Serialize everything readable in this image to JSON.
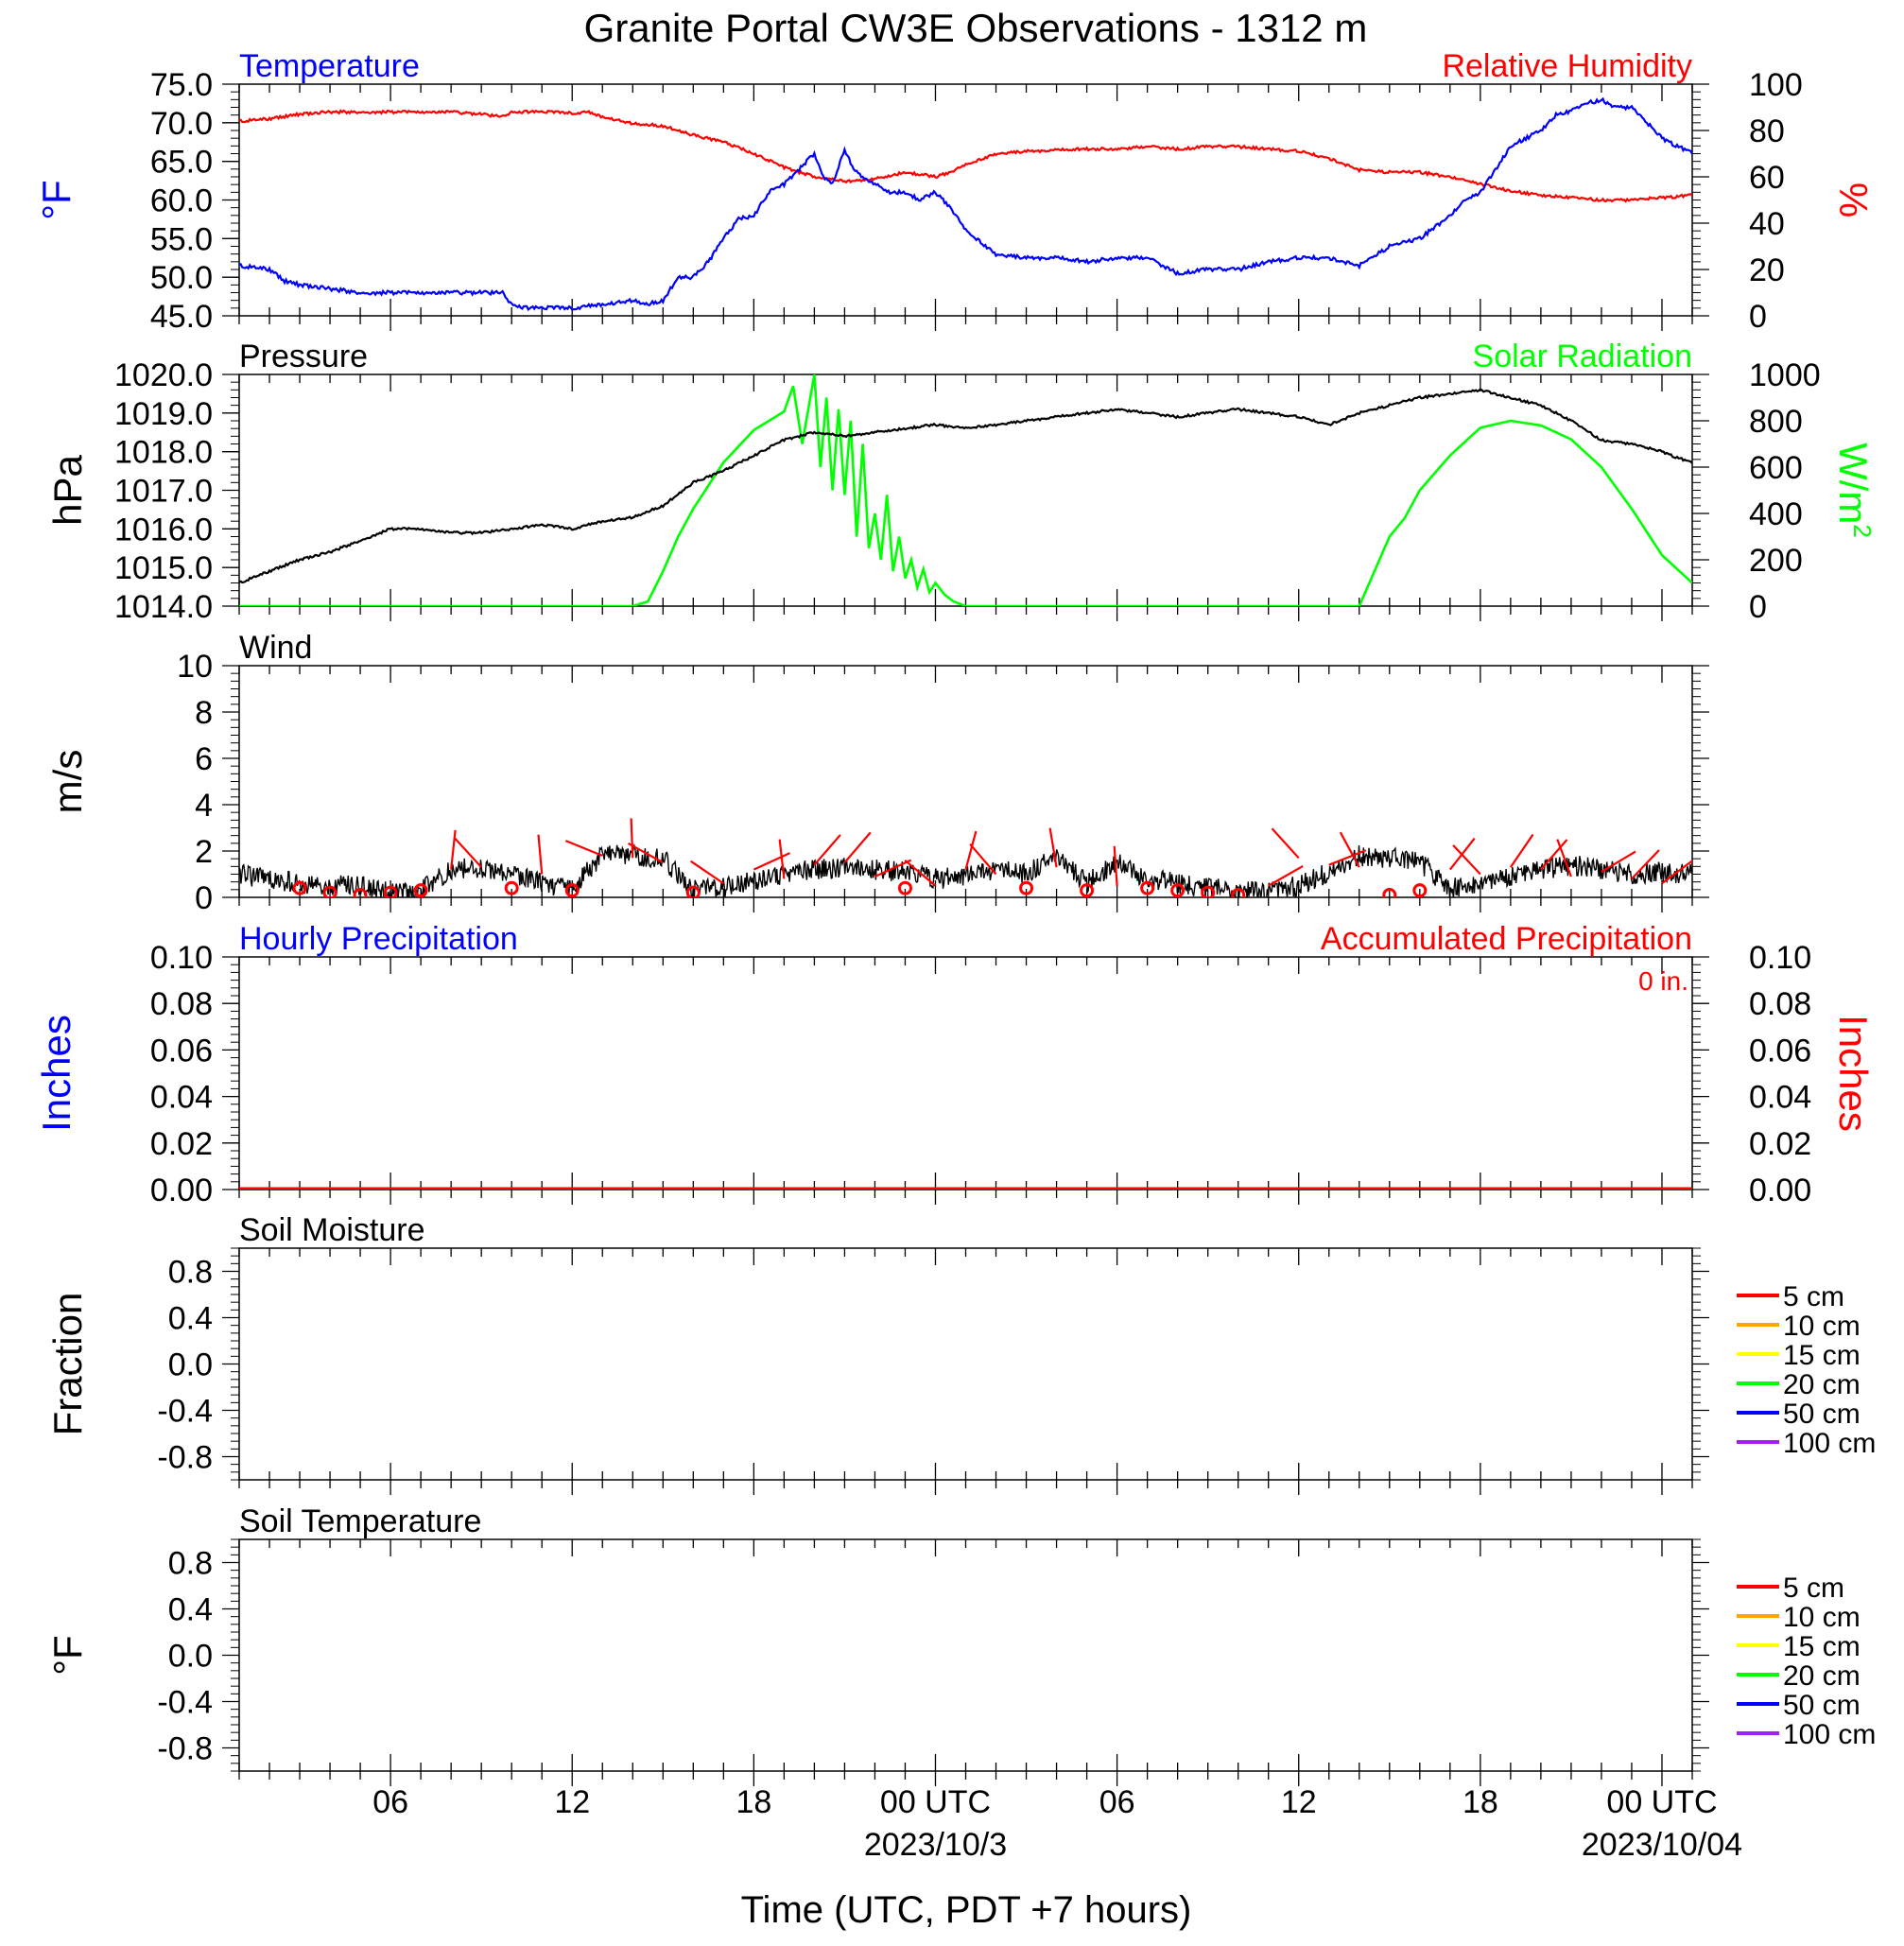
{
  "title": "Granite Portal CW3E Observations - 1312 m",
  "x_axis": {
    "label": "Time (UTC, PDT +7 hours)",
    "range_hours": [
      0,
      48
    ],
    "ticks": [
      {
        "hour": 5,
        "label": "06",
        "date": ""
      },
      {
        "hour": 11,
        "label": "12",
        "date": ""
      },
      {
        "hour": 17,
        "label": "18",
        "date": ""
      },
      {
        "hour": 23,
        "label": "00 UTC",
        "date": "2023/10/3"
      },
      {
        "hour": 29,
        "label": "06",
        "date": ""
      },
      {
        "hour": 35,
        "label": "12",
        "date": ""
      },
      {
        "hour": 41,
        "label": "18",
        "date": ""
      },
      {
        "hour": 47,
        "label": "00 UTC",
        "date": "2023/10/04"
      }
    ]
  },
  "colors": {
    "temperature": "#0000ff",
    "humidity": "#ff0000",
    "pressure": "#000000",
    "solar": "#00ff00",
    "wind": "#000000",
    "wind_barb": "#ff0000",
    "hourly_precip": "#0000ff",
    "accum_precip": "#ff0000"
  },
  "panels": {
    "temp_rh": {
      "left_title": "Temperature",
      "right_title": "Relative Humidity",
      "left_unit": "°F",
      "right_unit": "%",
      "left_ticks": [
        "75.0",
        "70.0",
        "65.0",
        "60.0",
        "55.0",
        "50.0",
        "45.0"
      ],
      "right_ticks": [
        "100",
        "80",
        "60",
        "40",
        "20",
        "0"
      ]
    },
    "pressure_solar": {
      "left_title": "Pressure",
      "right_title": "Solar Radiation",
      "left_unit": "hPa",
      "right_unit": "W/m",
      "right_unit_sup": "2",
      "left_ticks": [
        "1020.0",
        "1019.0",
        "1018.0",
        "1017.0",
        "1016.0",
        "1015.0",
        "1014.0"
      ],
      "right_ticks": [
        "1000",
        "800",
        "600",
        "400",
        "200",
        "0"
      ]
    },
    "wind": {
      "left_title": "Wind",
      "left_unit": "m/s",
      "left_ticks": [
        "10",
        "8",
        "6",
        "4",
        "2",
        "0"
      ]
    },
    "precip": {
      "left_title": "Hourly Precipitation",
      "right_title": "Accumulated Precipitation",
      "accum_label": "0 in.",
      "left_unit": "Inches",
      "right_unit": "Inches",
      "left_ticks": [
        "0.10",
        "0.08",
        "0.06",
        "0.04",
        "0.02",
        "0.00"
      ],
      "right_ticks": [
        "0.10",
        "0.08",
        "0.06",
        "0.04",
        "0.02",
        "0.00"
      ]
    },
    "soil_moisture": {
      "left_title": "Soil Moisture",
      "left_unit": "Fraction",
      "left_ticks": [
        "0.8",
        "0.4",
        "0.0",
        "-0.4",
        "-0.8"
      ],
      "legend": [
        {
          "label": "5 cm",
          "color": "#ff0000"
        },
        {
          "label": "10 cm",
          "color": "#ffa500"
        },
        {
          "label": "15 cm",
          "color": "#ffff00"
        },
        {
          "label": "20 cm",
          "color": "#00ff00"
        },
        {
          "label": "50 cm",
          "color": "#0000ff"
        },
        {
          "label": "100 cm",
          "color": "#a020f0"
        }
      ]
    },
    "soil_temp": {
      "left_title": "Soil Temperature",
      "left_unit": "°F",
      "left_ticks": [
        "0.8",
        "0.4",
        "0.0",
        "-0.4",
        "-0.8"
      ],
      "legend": [
        {
          "label": "5 cm",
          "color": "#ff0000"
        },
        {
          "label": "10 cm",
          "color": "#ffa500"
        },
        {
          "label": "15 cm",
          "color": "#ffff00"
        },
        {
          "label": "20 cm",
          "color": "#00ff00"
        },
        {
          "label": "50 cm",
          "color": "#0000ff"
        },
        {
          "label": "100 cm",
          "color": "#a020f0"
        }
      ]
    }
  },
  "chart_data": [
    {
      "type": "line",
      "title": "Temperature",
      "ylabel": "°F",
      "ylim": [
        45,
        75
      ],
      "x_units": "hours since 2023/10/02 01 UTC",
      "series": [
        {
          "name": "Temperature",
          "x": [
            0,
            1,
            1.5,
            2,
            3,
            4,
            5,
            6,
            7,
            8,
            8.7,
            9,
            9.5,
            10,
            11,
            12,
            13,
            13.5,
            14,
            14.5,
            15,
            15.5,
            16,
            16.5,
            17,
            17.5,
            18,
            18.5,
            19,
            19.3,
            19.6,
            20,
            20.3,
            20.6,
            21,
            21.5,
            22,
            22.5,
            23,
            23.5,
            24,
            25,
            26,
            27,
            28,
            29,
            30,
            31,
            32,
            33,
            34,
            35,
            36,
            37,
            38,
            39,
            40,
            40.5,
            41,
            41.5,
            42,
            42.5,
            43,
            43.5,
            44,
            44.5,
            45,
            45.5,
            46,
            46.5,
            47,
            48
          ],
          "values": [
            51.5,
            51,
            49.5,
            49,
            48.5,
            48,
            48,
            48,
            48,
            48,
            48,
            46.5,
            46,
            46,
            46,
            46.5,
            47,
            46.5,
            47,
            50,
            50,
            52,
            55,
            57.5,
            58,
            61,
            62,
            64,
            66,
            63,
            62,
            66.5,
            64,
            63,
            62,
            61,
            61,
            60,
            61,
            59,
            56,
            53,
            52.5,
            52.5,
            52,
            52.5,
            52.5,
            50.5,
            51,
            51,
            52,
            52.5,
            52.5,
            51.5,
            54,
            55,
            58,
            60,
            61,
            64,
            67,
            68,
            69,
            71,
            71.5,
            72.5,
            73,
            72,
            72,
            70,
            68,
            66
          ]
        },
        {
          "name": "Relative Humidity",
          "right_axis": true,
          "ylim": [
            0,
            100
          ],
          "x": [
            0,
            1,
            2,
            3,
            4,
            5,
            6,
            7,
            8,
            8.7,
            9,
            10,
            11,
            11.5,
            12,
            13,
            14,
            14.5,
            15,
            16,
            17,
            18,
            19,
            20,
            21,
            22,
            23,
            23.5,
            24,
            25,
            26,
            27,
            28,
            29,
            30,
            31,
            32,
            33,
            34,
            35,
            36,
            37,
            38,
            39,
            40,
            41,
            42,
            43,
            44,
            45,
            46,
            47,
            48
          ],
          "values": [
            84,
            85,
            87,
            88,
            88,
            88,
            88,
            88,
            87,
            86,
            88,
            88,
            87.5,
            88,
            86,
            83,
            82,
            80,
            78,
            75,
            70,
            64,
            60,
            58,
            59,
            62,
            60,
            62,
            65,
            70,
            71,
            71.5,
            72,
            72,
            73,
            72,
            73,
            73,
            72,
            71,
            68,
            63,
            62,
            62,
            60,
            57,
            54,
            52,
            51,
            50,
            50,
            51,
            52
          ]
        }
      ]
    },
    {
      "type": "line",
      "title": "Pressure",
      "ylabel": "hPa",
      "ylim": [
        1014,
        1020
      ],
      "x_units": "hours since 2023/10/02 01 UTC",
      "series": [
        {
          "name": "Pressure",
          "x": [
            0,
            1,
            2,
            3,
            4,
            5,
            6,
            7,
            8,
            9,
            10,
            11,
            12,
            13,
            14,
            15,
            16,
            17,
            18,
            19,
            20,
            21,
            22,
            23,
            24,
            25,
            26,
            27,
            28,
            29,
            30,
            31,
            32,
            33,
            34,
            35,
            36,
            37,
            38,
            39,
            40,
            41,
            42,
            43,
            44,
            45,
            46,
            47,
            48
          ],
          "values": [
            1014.6,
            1014.9,
            1015.2,
            1015.4,
            1015.7,
            1016.0,
            1016.0,
            1015.9,
            1015.9,
            1016.0,
            1016.1,
            1016.0,
            1016.2,
            1016.3,
            1016.6,
            1017.2,
            1017.5,
            1017.9,
            1018.3,
            1018.5,
            1018.4,
            1018.5,
            1018.6,
            1018.7,
            1018.6,
            1018.7,
            1018.8,
            1018.9,
            1019.0,
            1019.1,
            1019.0,
            1018.9,
            1019.0,
            1019.1,
            1019.0,
            1018.9,
            1018.7,
            1019.0,
            1019.2,
            1019.4,
            1019.5,
            1019.6,
            1019.4,
            1019.2,
            1018.8,
            1018.3,
            1018.2,
            1018.0,
            1017.7
          ]
        },
        {
          "name": "Solar Radiation",
          "right_axis": true,
          "ylim": [
            0,
            1000
          ],
          "x": [
            0,
            13,
            13.5,
            14,
            14.5,
            15,
            16,
            17,
            17.5,
            18,
            18.3,
            18.6,
            19,
            19.2,
            19.4,
            19.6,
            19.8,
            20,
            20.2,
            20.4,
            20.6,
            20.8,
            21,
            21.2,
            21.4,
            21.6,
            21.8,
            22,
            22.2,
            22.4,
            22.6,
            22.8,
            23,
            23.3,
            23.6,
            24,
            24.5,
            25,
            37,
            37.5,
            38,
            38.5,
            39,
            40,
            41,
            42,
            43,
            44,
            45,
            46,
            47,
            48
          ],
          "values": [
            0,
            0,
            20,
            150,
            300,
            420,
            620,
            760,
            800,
            840,
            950,
            700,
            1000,
            600,
            900,
            500,
            850,
            480,
            800,
            300,
            700,
            250,
            400,
            200,
            480,
            150,
            300,
            120,
            200,
            80,
            160,
            60,
            100,
            50,
            20,
            0,
            0,
            0,
            0,
            150,
            300,
            380,
            500,
            650,
            770,
            800,
            780,
            720,
            600,
            420,
            220,
            100
          ]
        }
      ]
    },
    {
      "type": "line",
      "title": "Wind",
      "ylabel": "m/s",
      "ylim": [
        0,
        10
      ],
      "x_units": "hours since 2023/10/02 01 UTC",
      "series": [
        {
          "name": "Wind",
          "x": [
            0,
            1,
            2,
            3,
            4,
            5,
            6,
            7,
            8,
            9,
            10,
            11,
            12,
            13,
            14,
            15,
            16,
            17,
            18,
            19,
            20,
            21,
            22,
            23,
            24,
            25,
            26,
            27,
            28,
            29,
            30,
            31,
            32,
            33,
            34,
            35,
            36,
            37,
            38,
            39,
            40,
            41,
            42,
            43,
            44,
            45,
            46,
            47,
            48
          ],
          "values": [
            1.0,
            0.8,
            0.6,
            0.5,
            0.5,
            0.2,
            0.3,
            1.2,
            1.3,
            1.0,
            0.6,
            0.3,
            1.9,
            1.8,
            1.7,
            0.3,
            0.4,
            0.7,
            1.0,
            1.2,
            1.3,
            1.2,
            1.1,
            0.8,
            0.9,
            1.2,
            1.0,
            1.8,
            0.6,
            1.5,
            0.8,
            0.6,
            0.4,
            0.3,
            0.2,
            0.5,
            1.1,
            1.8,
            1.7,
            1.5,
            0.4,
            0.5,
            0.9,
            1.2,
            1.4,
            1.2,
            1.0,
            1.1,
            1.0
          ]
        },
        {
          "name": "Wind barbs",
          "x": [
            2,
            3,
            4,
            5,
            6,
            7,
            8,
            9,
            10,
            11,
            12,
            13,
            14,
            15,
            16,
            17,
            18,
            19,
            20,
            21,
            22,
            23,
            24,
            25,
            26,
            27,
            28,
            29,
            30,
            31,
            32,
            33,
            34,
            35,
            36,
            37,
            38,
            39,
            40,
            41,
            42,
            43,
            44,
            45,
            46,
            47
          ],
          "values": [
            0.4,
            0.2,
            0.1,
            0.2,
            0.3,
            1.2,
            1.3,
            0.4,
            1.0,
            0.3,
            1.8,
            1.7,
            1.5,
            0.2,
            0.6,
            1.2,
            0.8,
            1.4,
            1.5,
            0.9,
            0.4,
            0.5,
            1.2,
            1.0,
            0.4,
            1.3,
            0.3,
            0.5,
            0.4,
            0.3,
            0.2,
            0.1,
            0.5,
            1.7,
            1.4,
            1.3,
            0.1,
            0.3,
            1.2,
            1.0,
            1.3,
            1.2,
            0.9,
            1.1,
            0.8,
            0.6
          ]
        }
      ]
    },
    {
      "type": "line",
      "title": "Hourly Precipitation",
      "ylabel": "Inches",
      "ylim": [
        0,
        0.1
      ],
      "series": [
        {
          "name": "Hourly Precipitation",
          "x": [
            0,
            48
          ],
          "values": [
            0,
            0
          ]
        },
        {
          "name": "Accumulated Precipitation",
          "right_axis": true,
          "x": [
            0,
            48
          ],
          "values": [
            0,
            0
          ]
        }
      ]
    },
    {
      "type": "line",
      "title": "Soil Moisture",
      "ylabel": "Fraction",
      "ylim": [
        -1,
        1
      ],
      "series": []
    },
    {
      "type": "line",
      "title": "Soil Temperature",
      "ylabel": "°F",
      "ylim": [
        -1,
        1
      ],
      "series": []
    }
  ]
}
